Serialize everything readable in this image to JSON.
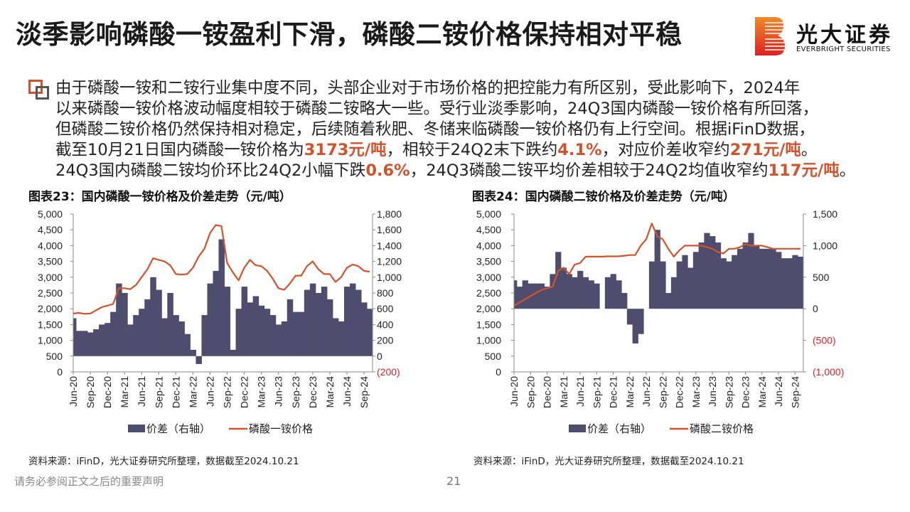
{
  "header": {
    "title": "淡季影响磷酸一铵盈利下滑，磷酸二铵价格保持相对平稳",
    "logo_cn": "光大证券",
    "logo_en": "EVERBRIGHT SECURITIES"
  },
  "body": {
    "lines": [
      [
        {
          "t": "由于磷酸一铵和二铵行业集中度不同，头部企业对于市场价格的把控能力有所区别，受此影响下，2024年"
        }
      ],
      [
        {
          "t": "以来磷酸一铵价格波动幅度相较于磷酸二铵略大一些。受行业淡季影响，24Q3国内磷酸一铵价格有所回落，"
        }
      ],
      [
        {
          "t": "但磷酸二铵价格仍然保持相对稳定，后续随着秋肥、冬储来临磷酸一铵价格仍有上行空间。根据iFinD数据，"
        }
      ],
      [
        {
          "t": "截至10月21日国内磷酸一铵价格为"
        },
        {
          "t": "3173元/吨",
          "hl": true
        },
        {
          "t": "，相较于24Q2末下跌约"
        },
        {
          "t": "4.1%",
          "hl": true
        },
        {
          "t": "，对应价差收窄约"
        },
        {
          "t": "271元/吨",
          "hl": true
        },
        {
          "t": "。"
        }
      ],
      [
        {
          "t": "24Q3国内磷酸二铵均价环比24Q2小幅下跌"
        },
        {
          "t": "0.6%",
          "hl": true
        },
        {
          "t": "，24Q3磷酸二铵平均价差相较于24Q2均值收窄约"
        },
        {
          "t": "117元/吨",
          "hl": true
        },
        {
          "t": "。"
        }
      ]
    ]
  },
  "colors": {
    "accent": "#d2532b",
    "area": "#4f4d6e",
    "negative_label": "#e0202a"
  },
  "chart_data": [
    {
      "type": "line+area",
      "title": "图表23：国内磷酸一铵价格及价差走势（元/吨）",
      "source": "资料来源：iFinD，光大证券研究所整理，数据截至2024.10.21",
      "x_tick_labels": [
        "Jun-20",
        "Sep-20",
        "Dec-20",
        "Mar-21",
        "Jun-21",
        "Sep-21",
        "Dec-21",
        "Mar-22",
        "Jun-22",
        "Sep-22",
        "Dec-22",
        "Mar-23",
        "Jun-23",
        "Sep-23",
        "Dec-23",
        "Mar-24",
        "Jun-24",
        "Sep-24"
      ],
      "x": [
        "2020-06",
        "2020-07",
        "2020-08",
        "2020-09",
        "2020-10",
        "2020-11",
        "2020-12",
        "2021-01",
        "2021-02",
        "2021-03",
        "2021-04",
        "2021-05",
        "2021-06",
        "2021-07",
        "2021-08",
        "2021-09",
        "2021-10",
        "2021-11",
        "2021-12",
        "2022-01",
        "2022-02",
        "2022-03",
        "2022-04",
        "2022-05",
        "2022-06",
        "2022-07",
        "2022-08",
        "2022-09",
        "2022-10",
        "2022-11",
        "2022-12",
        "2023-01",
        "2023-02",
        "2023-03",
        "2023-04",
        "2023-05",
        "2023-06",
        "2023-07",
        "2023-08",
        "2023-09",
        "2023-10",
        "2023-11",
        "2023-12",
        "2024-01",
        "2024-02",
        "2024-03",
        "2024-04",
        "2024-05",
        "2024-06",
        "2024-07",
        "2024-08",
        "2024-09",
        "2024-10"
      ],
      "left_axis": {
        "ylim": [
          0,
          5000
        ],
        "ticks": [
          "5,000",
          "4,500",
          "4,000",
          "3,500",
          "3,000",
          "2,500",
          "2,000",
          "1,500",
          "1,000",
          "500",
          "0"
        ]
      },
      "right_axis": {
        "ylim": [
          -200,
          1800
        ],
        "ticks": [
          "1,800",
          "1,600",
          "1,400",
          "1,200",
          "1,000",
          "800",
          "600",
          "400",
          "200",
          "0",
          "(200)"
        ]
      },
      "series": [
        {
          "name": "价差（右轴）",
          "type": "area",
          "axis": "right",
          "values": [
            480,
            320,
            320,
            300,
            340,
            400,
            420,
            560,
            920,
            800,
            400,
            520,
            600,
            720,
            1000,
            840,
            480,
            800,
            520,
            440,
            280,
            80,
            -100,
            520,
            920,
            1080,
            1480,
            880,
            80,
            600,
            880,
            680,
            760,
            640,
            600,
            520,
            400,
            440,
            720,
            560,
            560,
            840,
            920,
            800,
            880,
            720,
            480,
            440,
            880,
            920,
            840,
            680,
            600
          ]
        },
        {
          "name": "磷酸一铵价格",
          "type": "line",
          "axis": "left",
          "values": [
            1850,
            1870,
            1840,
            1850,
            1950,
            2050,
            2100,
            2150,
            2650,
            2650,
            2620,
            2750,
            3000,
            3250,
            3600,
            3550,
            3500,
            3380,
            3100,
            3080,
            3100,
            3300,
            3650,
            3900,
            4400,
            4650,
            4620,
            3450,
            3150,
            2900,
            3300,
            3550,
            3380,
            3350,
            3200,
            2950,
            2650,
            2600,
            2800,
            3050,
            3050,
            3350,
            3500,
            3250,
            3100,
            3100,
            2850,
            3000,
            3300,
            3400,
            3350,
            3200,
            3173
          ]
        }
      ],
      "legend": "bottom",
      "grid": false
    },
    {
      "type": "line+area",
      "title": "图表24：国内磷酸二铵价格及价差走势（元/吨）",
      "source": "资料来源：iFinD，光大证券研究所整理，数据截至2024.10.21",
      "x_tick_labels": [
        "Jun-20",
        "Sep-20",
        "Dec-20",
        "Mar-21",
        "Jun-21",
        "Sep-21",
        "Dec-21",
        "Mar-22",
        "Jun-22",
        "Sep-22",
        "Dec-22",
        "Mar-23",
        "Jun-23",
        "Sep-23",
        "Dec-23",
        "Mar-24",
        "Jun-24",
        "Sep-24"
      ],
      "x": [
        "2020-06",
        "2020-07",
        "2020-08",
        "2020-09",
        "2020-10",
        "2020-11",
        "2020-12",
        "2021-01",
        "2021-02",
        "2021-03",
        "2021-04",
        "2021-05",
        "2021-06",
        "2021-07",
        "2021-08",
        "2021-09",
        "2021-10",
        "2021-11",
        "2021-12",
        "2022-01",
        "2022-02",
        "2022-03",
        "2022-04",
        "2022-05",
        "2022-06",
        "2022-07",
        "2022-08",
        "2022-09",
        "2022-10",
        "2022-11",
        "2022-12",
        "2023-01",
        "2023-02",
        "2023-03",
        "2023-04",
        "2023-05",
        "2023-06",
        "2023-07",
        "2023-08",
        "2023-09",
        "2023-10",
        "2023-11",
        "2023-12",
        "2024-01",
        "2024-02",
        "2024-03",
        "2024-04",
        "2024-05",
        "2024-06",
        "2024-07",
        "2024-08",
        "2024-09",
        "2024-10"
      ],
      "left_axis": {
        "ylim": [
          0,
          5000
        ],
        "ticks": [
          "5,000",
          "4,500",
          "4,000",
          "3,500",
          "3,000",
          "2,500",
          "2,000",
          "1,500",
          "1,000",
          "500",
          "0"
        ]
      },
      "right_axis": {
        "ylim": [
          -1000,
          1500
        ],
        "ticks": [
          "1,500",
          "",
          "1,000",
          "",
          "500",
          "",
          "0",
          "",
          "(500)",
          "",
          "(1,000)"
        ]
      },
      "series": [
        {
          "name": "价差（右轴）",
          "type": "area",
          "axis": "right",
          "values": [
            450,
            350,
            450,
            400,
            400,
            400,
            350,
            550,
            900,
            650,
            550,
            500,
            600,
            500,
            450,
            400,
            0,
            500,
            550,
            450,
            250,
            -250,
            -550,
            -400,
            0,
            750,
            1250,
            750,
            250,
            500,
            750,
            850,
            650,
            900,
            1050,
            1200,
            1150,
            1050,
            800,
            750,
            850,
            950,
            1050,
            1200,
            1000,
            950,
            950,
            950,
            900,
            800,
            800,
            850,
            825
          ]
        },
        {
          "name": "磷酸二铵价格",
          "type": "line",
          "axis": "left",
          "values": [
            2100,
            2200,
            2300,
            2400,
            2500,
            2600,
            2650,
            2700,
            3200,
            3300,
            3100,
            3400,
            3450,
            3650,
            3650,
            3650,
            3650,
            3660,
            3660,
            3660,
            3680,
            3700,
            3700,
            4000,
            4200,
            4700,
            4300,
            4200,
            3900,
            3650,
            3850,
            4000,
            4000,
            4000,
            4000,
            3950,
            3900,
            3800,
            3750,
            3900,
            3900,
            3950,
            4050,
            4000,
            4000,
            4000,
            3950,
            3900,
            3900,
            3900,
            3900,
            3900,
            3900
          ]
        }
      ],
      "legend": "bottom",
      "grid": false
    }
  ],
  "footer": {
    "disclaimer": "请务必参阅正文之后的重要声明",
    "page": "21"
  }
}
